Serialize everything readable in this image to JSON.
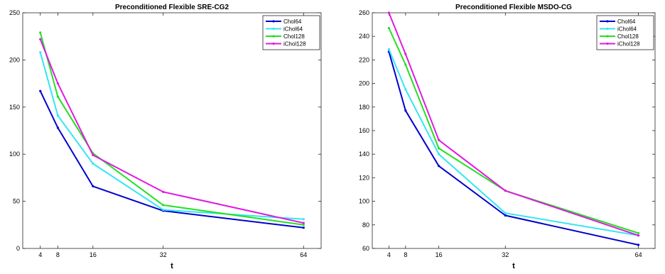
{
  "chart_data": [
    {
      "type": "line",
      "title": "Preconditioned Flexible SRE-CG2",
      "xlabel": "t",
      "ylabel": "",
      "x": [
        4,
        8,
        16,
        32,
        64
      ],
      "xticks": [
        4,
        8,
        16,
        32,
        64
      ],
      "xticklabels": [
        "4",
        "8",
        "16",
        "32",
        "64"
      ],
      "xlim": [
        0,
        68
      ],
      "ylim": [
        0,
        250
      ],
      "yticks": [
        0,
        50,
        100,
        150,
        200,
        250
      ],
      "yticklabels": [
        "0",
        "50",
        "100",
        "150",
        "200",
        "250"
      ],
      "legend_position": "top-right",
      "grid": false,
      "series": [
        {
          "name": "Chol64",
          "color": "#0000d0",
          "values": [
            167,
            128,
            66,
            40,
            22
          ]
        },
        {
          "name": "iChol64",
          "color": "#33e6f2",
          "values": [
            208,
            141,
            90,
            41,
            31
          ]
        },
        {
          "name": "Chol128",
          "color": "#22e022",
          "values": [
            229,
            161,
            101,
            46,
            25
          ]
        },
        {
          "name": "iChol128",
          "color": "#e01ae0",
          "values": [
            222,
            175,
            99,
            60,
            27
          ]
        }
      ]
    },
    {
      "type": "line",
      "title": "Preconditioned Flexible MSDO-CG",
      "xlabel": "t",
      "ylabel": "",
      "x": [
        4,
        8,
        16,
        32,
        64
      ],
      "xticks": [
        4,
        8,
        16,
        32,
        64
      ],
      "xticklabels": [
        "4",
        "8",
        "16",
        "32",
        "64"
      ],
      "xlim": [
        0,
        68
      ],
      "ylim": [
        60,
        260
      ],
      "yticks": [
        60,
        80,
        100,
        120,
        140,
        160,
        180,
        200,
        220,
        240,
        260
      ],
      "yticklabels": [
        "60",
        "80",
        "100",
        "120",
        "140",
        "160",
        "180",
        "200",
        "220",
        "240",
        "260"
      ],
      "legend_position": "top-right",
      "grid": false,
      "series": [
        {
          "name": "Chol64",
          "color": "#0000d0",
          "values": [
            227,
            177,
            130,
            88,
            63
          ]
        },
        {
          "name": "iChol64",
          "color": "#33e6f2",
          "values": [
            229,
            195,
            140,
            90,
            71
          ]
        },
        {
          "name": "Chol128",
          "color": "#22e022",
          "values": [
            247,
            216,
            145,
            109,
            73
          ]
        },
        {
          "name": "iChol128",
          "color": "#e01ae0",
          "values": [
            260,
            225,
            152,
            109,
            71
          ]
        }
      ]
    }
  ]
}
